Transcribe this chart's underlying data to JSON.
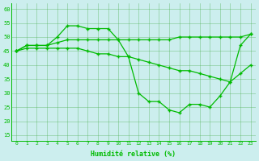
{
  "line1": [
    45,
    47,
    47,
    47,
    50,
    54,
    54,
    53,
    53,
    53,
    49,
    43,
    30,
    27,
    27,
    24,
    23,
    26,
    26,
    25,
    29,
    34,
    47,
    51
  ],
  "line2": [
    45,
    47,
    47,
    47,
    48,
    49,
    49,
    49,
    49,
    49,
    49,
    49,
    49,
    49,
    49,
    49,
    50,
    50,
    50,
    50,
    50,
    50,
    50,
    51
  ],
  "line3": [
    45,
    46,
    46,
    46,
    46,
    46,
    46,
    45,
    44,
    44,
    43,
    43,
    42,
    41,
    40,
    39,
    38,
    38,
    37,
    36,
    35,
    34,
    37,
    40
  ],
  "x": [
    0,
    1,
    2,
    3,
    4,
    5,
    6,
    7,
    8,
    9,
    10,
    11,
    12,
    13,
    14,
    15,
    16,
    17,
    18,
    19,
    20,
    21,
    22,
    23
  ],
  "xlabel": "Humidité relative (%)",
  "ylim": [
    13,
    62
  ],
  "xlim": [
    -0.5,
    23.5
  ],
  "yticks": [
    15,
    20,
    25,
    30,
    35,
    40,
    45,
    50,
    55,
    60
  ],
  "xtick_labels": [
    "0",
    "1",
    "2",
    "3",
    "4",
    "5",
    "6",
    "7",
    "8",
    "9",
    "10",
    "11",
    "12",
    "13",
    "14",
    "15",
    "16",
    "17",
    "18",
    "19",
    "20",
    "21",
    "22",
    "23"
  ],
  "line_color": "#00bb00",
  "bg_color": "#cceeee",
  "grid_color": "#44aa44",
  "marker": "+"
}
